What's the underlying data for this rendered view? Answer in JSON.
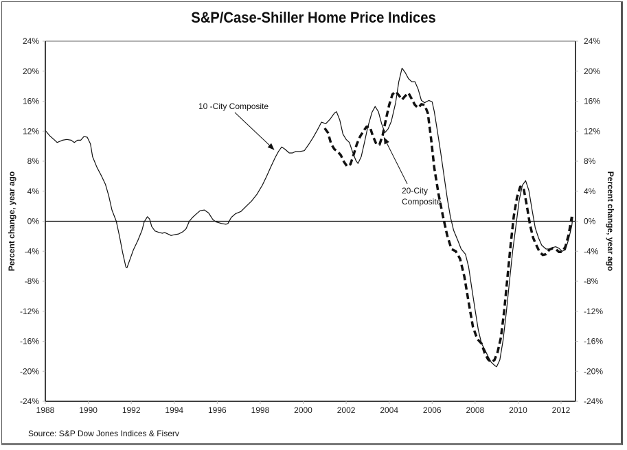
{
  "chart_data": {
    "type": "line",
    "title": "S&P/Case-Shiller Home Price Indices",
    "source": "Source: S&P Dow Jones Indices & Fiserv",
    "ylabel_left": "Percent change, year ago",
    "ylabel_right": "Percent change, year ago",
    "xlabel": "",
    "xlim": [
      1988,
      2012.75
    ],
    "ylim": [
      -24,
      24
    ],
    "x_ticks": [
      "1988",
      "1990",
      "1992",
      "1994",
      "1996",
      "1998",
      "2000",
      "2002",
      "2004",
      "2006",
      "2008",
      "2010",
      "2012"
    ],
    "y_ticks": [
      "24%",
      "20%",
      "16%",
      "12%",
      "8%",
      "4%",
      "0%",
      "-4%",
      "-8%",
      "-12%",
      "-16%",
      "-20%",
      "-24%"
    ],
    "y_tick_values": [
      24,
      20,
      16,
      12,
      8,
      4,
      0,
      -4,
      -8,
      -12,
      -16,
      -20,
      -24
    ],
    "grid": false,
    "zero_line": true,
    "annotations": [
      {
        "text": "10 -City Composite",
        "points_to": [
          1998.7,
          9.2
        ]
      },
      {
        "text_lines": [
          "20-City",
          "Composite"
        ],
        "points_to": [
          2003.7,
          11.5
        ]
      }
    ],
    "series": [
      {
        "name": "10-City Composite",
        "style": "solid",
        "points": [
          [
            1988.0,
            12.1
          ],
          [
            1988.2,
            11.4
          ],
          [
            1988.4,
            10.9
          ],
          [
            1988.55,
            10.5
          ],
          [
            1988.8,
            10.8
          ],
          [
            1989.0,
            10.9
          ],
          [
            1989.2,
            10.8
          ],
          [
            1989.35,
            10.5
          ],
          [
            1989.5,
            10.8
          ],
          [
            1989.65,
            10.8
          ],
          [
            1989.8,
            11.3
          ],
          [
            1989.95,
            11.2
          ],
          [
            1990.1,
            10.3
          ],
          [
            1990.2,
            8.6
          ],
          [
            1990.4,
            7.2
          ],
          [
            1990.6,
            6.1
          ],
          [
            1990.8,
            4.9
          ],
          [
            1990.95,
            3.4
          ],
          [
            1991.1,
            1.5
          ],
          [
            1991.3,
            0.0
          ],
          [
            1991.45,
            -2.0
          ],
          [
            1991.6,
            -4.2
          ],
          [
            1991.75,
            -6.1
          ],
          [
            1991.8,
            -6.2
          ],
          [
            1991.95,
            -5.0
          ],
          [
            1992.1,
            -3.8
          ],
          [
            1992.3,
            -2.6
          ],
          [
            1992.5,
            -1.2
          ],
          [
            1992.6,
            -0.1
          ],
          [
            1992.75,
            0.6
          ],
          [
            1992.85,
            0.3
          ],
          [
            1992.95,
            -0.7
          ],
          [
            1993.1,
            -1.3
          ],
          [
            1993.3,
            -1.5
          ],
          [
            1993.45,
            -1.6
          ],
          [
            1993.55,
            -1.5
          ],
          [
            1993.7,
            -1.7
          ],
          [
            1993.85,
            -1.9
          ],
          [
            1994.0,
            -1.8
          ],
          [
            1994.2,
            -1.7
          ],
          [
            1994.4,
            -1.4
          ],
          [
            1994.55,
            -1.0
          ],
          [
            1994.7,
            0.0
          ],
          [
            1994.85,
            0.5
          ],
          [
            1995.0,
            0.9
          ],
          [
            1995.2,
            1.4
          ],
          [
            1995.4,
            1.5
          ],
          [
            1995.6,
            1.1
          ],
          [
            1995.8,
            0.2
          ],
          [
            1995.95,
            -0.1
          ],
          [
            1996.2,
            -0.3
          ],
          [
            1996.4,
            -0.4
          ],
          [
            1996.5,
            -0.3
          ],
          [
            1996.65,
            0.5
          ],
          [
            1996.85,
            1.0
          ],
          [
            1997.1,
            1.3
          ],
          [
            1997.35,
            2.0
          ],
          [
            1997.6,
            2.7
          ],
          [
            1997.85,
            3.6
          ],
          [
            1998.1,
            4.8
          ],
          [
            1998.3,
            6.0
          ],
          [
            1998.5,
            7.3
          ],
          [
            1998.7,
            8.5
          ],
          [
            1998.85,
            9.3
          ],
          [
            1999.0,
            9.9
          ],
          [
            1999.15,
            9.6
          ],
          [
            1999.35,
            9.1
          ],
          [
            1999.5,
            9.1
          ],
          [
            1999.65,
            9.3
          ],
          [
            1999.85,
            9.3
          ],
          [
            2000.05,
            9.4
          ],
          [
            2000.25,
            10.2
          ],
          [
            2000.45,
            11.1
          ],
          [
            2000.65,
            12.1
          ],
          [
            2000.85,
            13.2
          ],
          [
            2001.05,
            13.0
          ],
          [
            2001.25,
            13.6
          ],
          [
            2001.45,
            14.4
          ],
          [
            2001.55,
            14.6
          ],
          [
            2001.7,
            13.5
          ],
          [
            2001.85,
            11.6
          ],
          [
            2002.0,
            10.9
          ],
          [
            2002.15,
            10.5
          ],
          [
            2002.3,
            9.2
          ],
          [
            2002.45,
            8.1
          ],
          [
            2002.55,
            7.7
          ],
          [
            2002.7,
            8.6
          ],
          [
            2002.85,
            10.5
          ],
          [
            2003.0,
            12.5
          ],
          [
            2003.2,
            14.5
          ],
          [
            2003.35,
            15.3
          ],
          [
            2003.5,
            14.6
          ],
          [
            2003.65,
            13.0
          ],
          [
            2003.8,
            11.8
          ],
          [
            2003.95,
            12.3
          ],
          [
            2004.1,
            13.3
          ],
          [
            2004.3,
            15.8
          ],
          [
            2004.45,
            18.6
          ],
          [
            2004.6,
            20.4
          ],
          [
            2004.75,
            19.8
          ],
          [
            2004.9,
            19.0
          ],
          [
            2005.05,
            18.6
          ],
          [
            2005.2,
            18.6
          ],
          [
            2005.35,
            17.6
          ],
          [
            2005.5,
            16.1
          ],
          [
            2005.65,
            15.8
          ],
          [
            2005.85,
            16.1
          ],
          [
            2006.0,
            15.9
          ],
          [
            2006.1,
            14.6
          ],
          [
            2006.25,
            11.9
          ],
          [
            2006.4,
            9.1
          ],
          [
            2006.55,
            6.1
          ],
          [
            2006.7,
            3.1
          ],
          [
            2006.85,
            0.6
          ],
          [
            2007.0,
            -1.2
          ],
          [
            2007.2,
            -2.6
          ],
          [
            2007.35,
            -3.7
          ],
          [
            2007.55,
            -4.4
          ],
          [
            2007.7,
            -6.1
          ],
          [
            2007.85,
            -9.0
          ],
          [
            2008.0,
            -11.8
          ],
          [
            2008.15,
            -14.5
          ],
          [
            2008.3,
            -16.3
          ],
          [
            2008.45,
            -17.1
          ],
          [
            2008.6,
            -18.0
          ],
          [
            2008.75,
            -18.8
          ],
          [
            2008.9,
            -19.2
          ],
          [
            2009.0,
            -19.4
          ],
          [
            2009.15,
            -18.5
          ],
          [
            2009.3,
            -15.9
          ],
          [
            2009.45,
            -12.2
          ],
          [
            2009.6,
            -8.0
          ],
          [
            2009.75,
            -3.9
          ],
          [
            2009.9,
            -0.6
          ],
          [
            2010.05,
            2.8
          ],
          [
            2010.2,
            4.8
          ],
          [
            2010.35,
            5.4
          ],
          [
            2010.5,
            4.1
          ],
          [
            2010.65,
            1.5
          ],
          [
            2010.8,
            -0.9
          ],
          [
            2010.95,
            -2.2
          ],
          [
            2011.1,
            -3.2
          ],
          [
            2011.3,
            -3.7
          ],
          [
            2011.45,
            -3.7
          ],
          [
            2011.6,
            -3.5
          ],
          [
            2011.75,
            -3.4
          ],
          [
            2011.9,
            -3.6
          ],
          [
            2012.05,
            -4.0
          ],
          [
            2012.2,
            -3.8
          ],
          [
            2012.35,
            -2.4
          ],
          [
            2012.5,
            -0.6
          ],
          [
            2012.55,
            0.6
          ]
        ]
      },
      {
        "name": "20-City Composite",
        "style": "dashed",
        "points": [
          [
            2001.0,
            12.4
          ],
          [
            2001.15,
            11.8
          ],
          [
            2001.3,
            10.3
          ],
          [
            2001.45,
            9.6
          ],
          [
            2001.6,
            9.3
          ],
          [
            2001.75,
            8.8
          ],
          [
            2001.9,
            7.9
          ],
          [
            2002.05,
            7.3
          ],
          [
            2002.2,
            7.6
          ],
          [
            2002.35,
            8.9
          ],
          [
            2002.5,
            10.3
          ],
          [
            2002.65,
            11.3
          ],
          [
            2002.8,
            12.0
          ],
          [
            2002.95,
            12.6
          ],
          [
            2003.1,
            12.6
          ],
          [
            2003.25,
            11.3
          ],
          [
            2003.4,
            10.3
          ],
          [
            2003.55,
            10.2
          ],
          [
            2003.7,
            11.5
          ],
          [
            2003.85,
            13.6
          ],
          [
            2004.0,
            15.5
          ],
          [
            2004.15,
            16.9
          ],
          [
            2004.3,
            17.3
          ],
          [
            2004.45,
            16.8
          ],
          [
            2004.6,
            16.2
          ],
          [
            2004.75,
            16.7
          ],
          [
            2004.9,
            17.1
          ],
          [
            2005.05,
            16.3
          ],
          [
            2005.2,
            15.5
          ],
          [
            2005.35,
            15.1
          ],
          [
            2005.5,
            15.6
          ],
          [
            2005.65,
            15.5
          ],
          [
            2005.8,
            14.4
          ],
          [
            2005.95,
            11.0
          ],
          [
            2006.1,
            7.1
          ],
          [
            2006.3,
            3.6
          ],
          [
            2006.5,
            0.7
          ],
          [
            2006.7,
            -1.9
          ],
          [
            2006.9,
            -3.7
          ],
          [
            2007.1,
            -4.0
          ],
          [
            2007.3,
            -5.0
          ],
          [
            2007.5,
            -7.4
          ],
          [
            2007.7,
            -10.8
          ],
          [
            2007.9,
            -14.1
          ],
          [
            2008.1,
            -15.7
          ],
          [
            2008.3,
            -16.3
          ],
          [
            2008.45,
            -17.6
          ],
          [
            2008.6,
            -18.4
          ],
          [
            2008.75,
            -18.8
          ],
          [
            2008.9,
            -18.5
          ],
          [
            2009.05,
            -17.4
          ],
          [
            2009.2,
            -15.5
          ],
          [
            2009.35,
            -12.0
          ],
          [
            2009.5,
            -7.6
          ],
          [
            2009.65,
            -3.2
          ],
          [
            2009.8,
            0.7
          ],
          [
            2009.95,
            3.2
          ],
          [
            2010.1,
            4.6
          ],
          [
            2010.25,
            4.5
          ],
          [
            2010.4,
            2.2
          ],
          [
            2010.55,
            -0.4
          ],
          [
            2010.7,
            -2.2
          ],
          [
            2010.85,
            -3.2
          ],
          [
            2011.0,
            -4.1
          ],
          [
            2011.15,
            -4.5
          ],
          [
            2011.3,
            -4.4
          ],
          [
            2011.45,
            -3.8
          ],
          [
            2011.6,
            -3.6
          ],
          [
            2011.75,
            -3.7
          ],
          [
            2011.9,
            -4.1
          ],
          [
            2012.05,
            -4.1
          ],
          [
            2012.2,
            -3.4
          ],
          [
            2012.35,
            -1.8
          ],
          [
            2012.5,
            0.6
          ]
        ]
      }
    ]
  }
}
